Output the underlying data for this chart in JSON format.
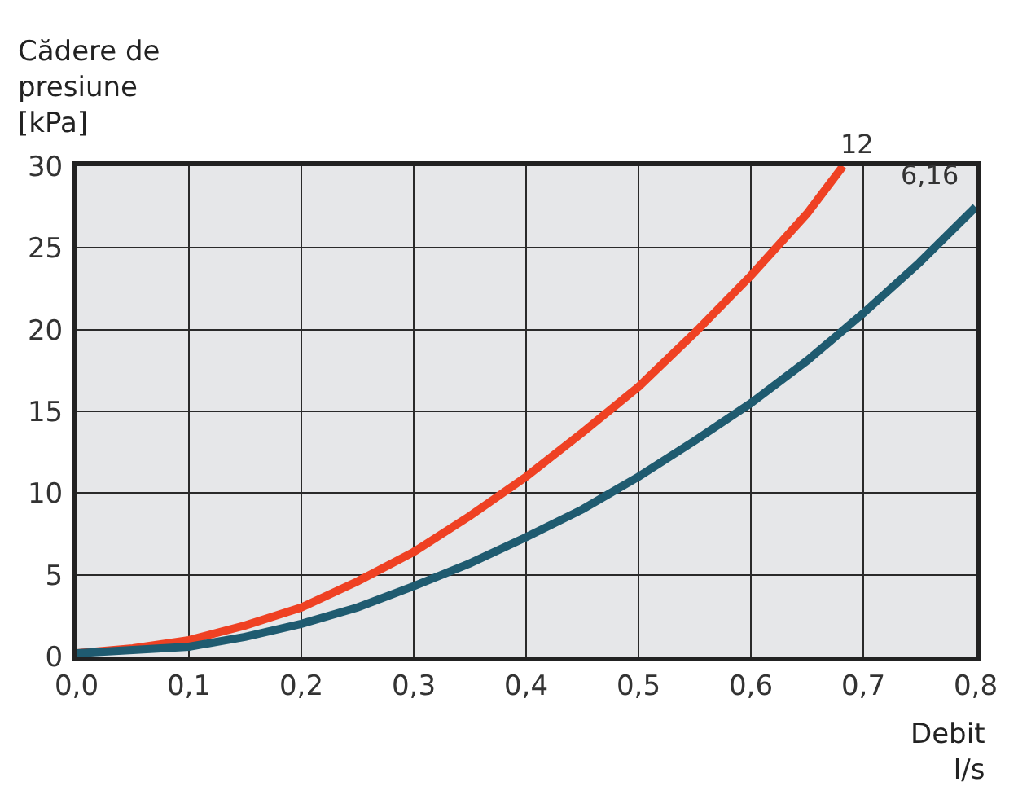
{
  "chart_data": {
    "type": "line",
    "xlabel": "Debit\nl/s",
    "ylabel": "Cădere de\npresiune\n[kPa]",
    "xlim": [
      0,
      0.8
    ],
    "ylim": [
      0,
      30
    ],
    "xticks": [
      {
        "value": 0,
        "label": "0,0"
      },
      {
        "value": 0.1,
        "label": "0,1"
      },
      {
        "value": 0.2,
        "label": "0,2"
      },
      {
        "value": 0.3,
        "label": "0,3"
      },
      {
        "value": 0.4,
        "label": "0,4"
      },
      {
        "value": 0.5,
        "label": "0,5"
      },
      {
        "value": 0.6,
        "label": "0,6"
      },
      {
        "value": 0.7,
        "label": "0,7"
      },
      {
        "value": 0.8,
        "label": "0,8"
      }
    ],
    "yticks": [
      0,
      5,
      10,
      15,
      20,
      25,
      30
    ],
    "grid": true,
    "legend": false,
    "marker": "none",
    "line_style": "solid",
    "series": [
      {
        "name": "12",
        "color": "#ef4123",
        "x": [
          0,
          0.05,
          0.1,
          0.15,
          0.2,
          0.25,
          0.3,
          0.35,
          0.4,
          0.45,
          0.5,
          0.55,
          0.6,
          0.65,
          0.682
        ],
        "values": [
          0.2,
          0.5,
          1.0,
          1.9,
          3.0,
          4.6,
          6.4,
          8.6,
          11.0,
          13.7,
          16.5,
          19.8,
          23.3,
          27.1,
          30.0
        ]
      },
      {
        "name": "6,16",
        "color": "#1f5b70",
        "x": [
          0,
          0.05,
          0.1,
          0.15,
          0.2,
          0.25,
          0.3,
          0.35,
          0.4,
          0.45,
          0.5,
          0.55,
          0.6,
          0.65,
          0.7,
          0.75,
          0.8
        ],
        "values": [
          0.2,
          0.4,
          0.6,
          1.2,
          2.0,
          3.0,
          4.3,
          5.7,
          7.3,
          9.0,
          11.0,
          13.2,
          15.5,
          18.1,
          21.0,
          24.1,
          27.5
        ]
      }
    ]
  }
}
